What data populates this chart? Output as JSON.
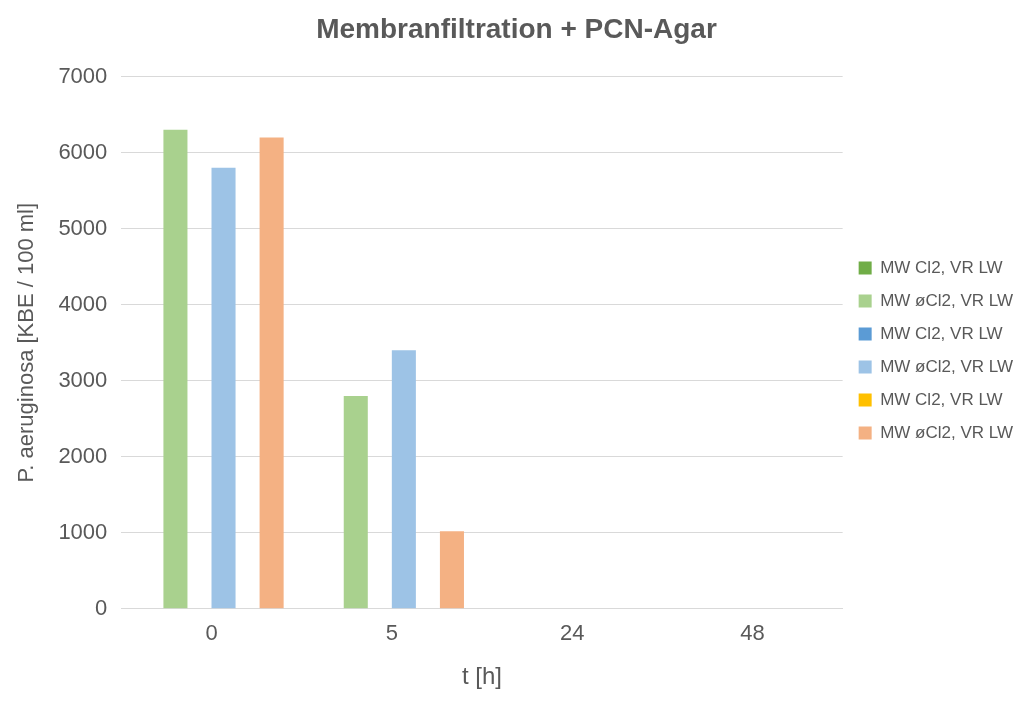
{
  "chart_data": {
    "type": "bar",
    "title": "Membranfiltration + PCN-Agar",
    "xlabel": "t [h]",
    "ylabel": "P. aeruginosa [KBE / 100 ml]",
    "categories": [
      "0",
      "5",
      "24",
      "48"
    ],
    "series": [
      {
        "name": "MW Cl2, VR LW",
        "color": "#70ad47",
        "values": [
          0,
          0,
          0,
          0
        ]
      },
      {
        "name": "MW øCl2, VR LW",
        "color": "#a9d18e",
        "values": [
          6300,
          2800,
          0,
          0
        ]
      },
      {
        "name": "MW Cl2, VR LW",
        "color": "#5b9bd5",
        "values": [
          0,
          0,
          0,
          0
        ]
      },
      {
        "name": "MW øCl2, VR LW",
        "color": "#9dc3e6",
        "values": [
          5800,
          3400,
          0,
          0
        ]
      },
      {
        "name": "MW Cl2, VR LW",
        "color": "#ffc000",
        "values": [
          0,
          0,
          0,
          0
        ]
      },
      {
        "name": "MW øCl2, VR LW",
        "color": "#f4b183",
        "values": [
          6200,
          1020,
          0,
          0
        ]
      }
    ],
    "ylim": [
      0,
      7000
    ],
    "yticks": [
      0,
      1000,
      2000,
      3000,
      4000,
      5000,
      6000,
      7000
    ],
    "grid": "y",
    "legend": "right"
  }
}
